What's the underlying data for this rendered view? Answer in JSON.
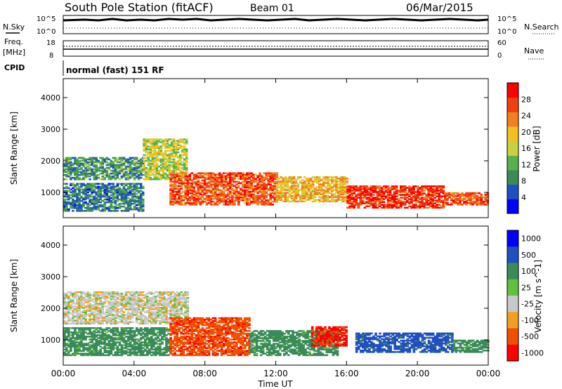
{
  "header": {
    "title": "South Pole Station (fitACF)",
    "beam": "Beam 01",
    "date": "06/Mar/2015"
  },
  "top_panels": {
    "nsky_label": "N.Sky",
    "nsky_ticks": [
      "10^5",
      "10^0"
    ],
    "nsearch_label": "N.Search",
    "nsearch_ticks": [
      "10^5",
      "10^0"
    ],
    "freq_label_1": "Freq.",
    "freq_label_2": "[MHz]",
    "freq_ticks": [
      "18",
      "8"
    ],
    "nave_label": "Nave",
    "nave_ticks": [
      "60",
      "0"
    ],
    "cpid_label": "CPID",
    "cpid_text": "normal (fast) 151 RF"
  },
  "colors": {
    "power_scale": [
      "#0000ff",
      "#2050c0",
      "#3a8a5a",
      "#5ab04a",
      "#c8d040",
      "#f0c020",
      "#f08020",
      "#f04010",
      "#ff0000"
    ],
    "velocity_scale": [
      "#ff0000",
      "#f05000",
      "#f0a020",
      "#c8c8c8",
      "#60c040",
      "#3a8a5a",
      "#2050c0",
      "#0000ff"
    ]
  },
  "chart_data": [
    {
      "type": "heatmap",
      "title": "",
      "xlabel": "Time UT",
      "ylabel": "Slant Range [km]",
      "x_ticks": [
        "00:00",
        "04:00",
        "08:00",
        "12:00",
        "16:00",
        "20:00",
        "00:00"
      ],
      "xlim_hours": [
        0,
        24
      ],
      "y_ticks": [
        1000,
        2000,
        3000,
        4000
      ],
      "ylim": [
        200,
        4600
      ],
      "colorbar_label": "Power [dB]",
      "colorbar_ticks": [
        4,
        8,
        12,
        16,
        20,
        24,
        28
      ],
      "colorbar_range": [
        0,
        32
      ],
      "regions": [
        {
          "t": [
            0,
            4.5
          ],
          "r": [
            1400,
            2100
          ],
          "value": 10
        },
        {
          "t": [
            0,
            4.5
          ],
          "r": [
            400,
            1300
          ],
          "value": 8
        },
        {
          "t": [
            4.5,
            7.0
          ],
          "r": [
            1400,
            2700
          ],
          "value": 16
        },
        {
          "t": [
            6.0,
            12.0
          ],
          "r": [
            600,
            1600
          ],
          "value": 26
        },
        {
          "t": [
            12.0,
            16.0
          ],
          "r": [
            700,
            1500
          ],
          "value": 20
        },
        {
          "t": [
            16.0,
            21.5
          ],
          "r": [
            500,
            1200
          ],
          "value": 28
        },
        {
          "t": [
            21.5,
            24.0
          ],
          "r": [
            600,
            1000
          ],
          "value": 26
        }
      ]
    },
    {
      "type": "heatmap",
      "title": "",
      "xlabel": "Time UT",
      "ylabel": "Slant Range [km]",
      "x_ticks": [
        "00:00",
        "04:00",
        "08:00",
        "12:00",
        "16:00",
        "20:00",
        "00:00"
      ],
      "xlim_hours": [
        0,
        24
      ],
      "y_ticks": [
        1000,
        2000,
        3000,
        4000
      ],
      "ylim": [
        200,
        4600
      ],
      "colorbar_label": "Velocity [m s^-1]",
      "colorbar_ticks": [
        "1000",
        "500",
        "100",
        "25",
        "-25",
        "-100",
        "-500",
        "-1000"
      ],
      "regions": [
        {
          "t": [
            0,
            7.0
          ],
          "r": [
            1500,
            2500
          ],
          "value": 0
        },
        {
          "t": [
            0,
            6.0
          ],
          "r": [
            500,
            1400
          ],
          "value": 150
        },
        {
          "t": [
            6.0,
            10.5
          ],
          "r": [
            500,
            1700
          ],
          "value": -400
        },
        {
          "t": [
            10.5,
            15.5
          ],
          "r": [
            500,
            1300
          ],
          "value": 150
        },
        {
          "t": [
            14.0,
            16.0
          ],
          "r": [
            800,
            1400
          ],
          "value": -600
        },
        {
          "t": [
            16.5,
            22.0
          ],
          "r": [
            600,
            1200
          ],
          "value": 700
        },
        {
          "t": [
            22.0,
            24.0
          ],
          "r": [
            600,
            1000
          ],
          "value": 150
        }
      ]
    }
  ]
}
